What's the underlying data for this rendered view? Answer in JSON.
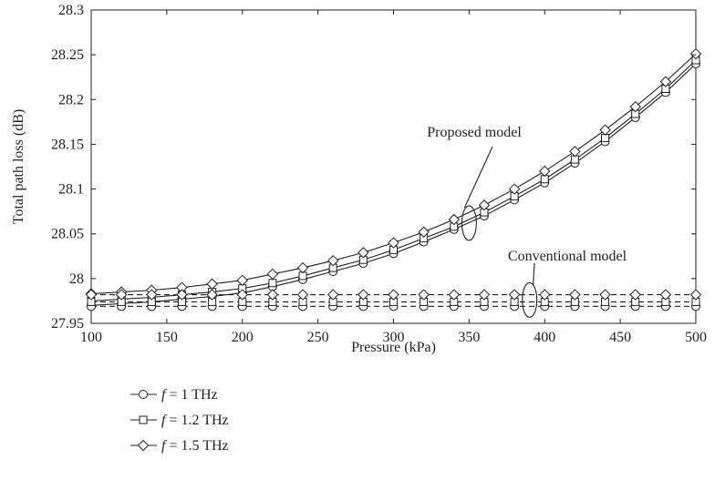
{
  "chart_data": {
    "type": "line",
    "xlabel": "Pressure (kPa)",
    "ylabel": "Total path loss (dB)",
    "xlim": [
      100,
      500
    ],
    "ylim": [
      27.95,
      28.3
    ],
    "x_ticks": [
      "100",
      "150",
      "200",
      "250",
      "300",
      "350",
      "400",
      "450",
      "500"
    ],
    "y_ticks": [
      "27.95",
      "28",
      "28.05",
      "28.1",
      "28.15",
      "28.2",
      "28.25",
      "28.3"
    ],
    "grid": false,
    "legend_position": "bottom-left, below plot",
    "x": [
      100,
      120,
      140,
      160,
      180,
      200,
      220,
      240,
      260,
      280,
      300,
      320,
      340,
      360,
      380,
      400,
      420,
      440,
      460,
      480,
      500
    ],
    "series": [
      {
        "name": "f = 1 THz",
        "model": "proposed",
        "marker": "circle",
        "values": [
          27.97,
          27.972,
          27.974,
          27.977,
          27.98,
          27.984,
          27.991,
          27.999,
          28.008,
          28.017,
          28.028,
          28.041,
          28.055,
          28.07,
          28.088,
          28.107,
          28.129,
          28.153,
          28.18,
          28.208,
          28.24
        ]
      },
      {
        "name": "f = 1.2 THz",
        "model": "proposed",
        "marker": "square",
        "values": [
          27.975,
          27.977,
          27.979,
          27.982,
          27.985,
          27.989,
          27.995,
          28.003,
          28.012,
          28.021,
          28.032,
          28.045,
          28.058,
          28.074,
          28.092,
          28.111,
          28.133,
          28.157,
          28.184,
          28.212,
          28.244
        ]
      },
      {
        "name": "f = 1.5 THz",
        "model": "proposed",
        "marker": "diamond",
        "values": [
          27.983,
          27.985,
          27.987,
          27.99,
          27.994,
          27.998,
          28.005,
          28.012,
          28.02,
          28.029,
          28.04,
          28.052,
          28.066,
          28.082,
          28.1,
          28.12,
          28.142,
          28.166,
          28.192,
          28.22,
          28.251
        ]
      },
      {
        "name": "f = 1 THz",
        "model": "conventional",
        "marker": "circle",
        "values": [
          27.969,
          27.969,
          27.969,
          27.969,
          27.969,
          27.969,
          27.969,
          27.969,
          27.969,
          27.969,
          27.969,
          27.969,
          27.969,
          27.969,
          27.969,
          27.969,
          27.969,
          27.969,
          27.969,
          27.969,
          27.969
        ]
      },
      {
        "name": "f = 1.2 THz",
        "model": "conventional",
        "marker": "square",
        "values": [
          27.974,
          27.974,
          27.974,
          27.974,
          27.974,
          27.974,
          27.974,
          27.974,
          27.974,
          27.974,
          27.974,
          27.974,
          27.974,
          27.974,
          27.974,
          27.974,
          27.974,
          27.974,
          27.974,
          27.974,
          27.974
        ]
      },
      {
        "name": "f = 1.5 THz",
        "model": "conventional",
        "marker": "diamond",
        "values": [
          27.982,
          27.982,
          27.982,
          27.982,
          27.982,
          27.982,
          27.982,
          27.982,
          27.982,
          27.982,
          27.982,
          27.982,
          27.982,
          27.982,
          27.982,
          27.982,
          27.982,
          27.982,
          27.982,
          27.982,
          27.982
        ]
      }
    ],
    "annotations": [
      {
        "text": "Proposed model",
        "target_x": 350,
        "target_y": 28.062
      },
      {
        "text": "Conventional model",
        "target_x": 390,
        "target_y": 27.976
      }
    ],
    "legend": [
      {
        "marker": "circle",
        "var": "f",
        "rest": " = 1 THz"
      },
      {
        "marker": "square",
        "var": "f",
        "rest": " = 1.2 THz"
      },
      {
        "marker": "diamond",
        "var": "f",
        "rest": " = 1.5 THz"
      }
    ],
    "colors": {
      "ink": "#231f20",
      "background": "#ffffff"
    }
  }
}
